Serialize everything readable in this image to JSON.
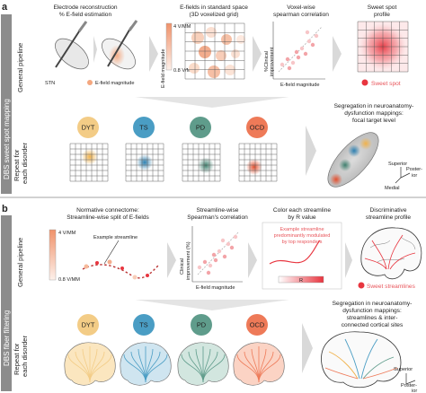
{
  "panel_a": {
    "letter": "a",
    "side_label": "DBS sweet spot mapping",
    "row1_label": "General pipeline",
    "row2_label_line1": "Repeat for",
    "row2_label_line2": "each disorder",
    "step1_title_line1": "Electrode reconstruction",
    "step1_title_line2": "% E-field estimation",
    "step1_stn": "STN",
    "step1_legend": "E-field magnitude",
    "step2_title_line1": "E-fields in standard space",
    "step2_title_line2": "(3D voxelized grid)",
    "step2_scale_top": "4 V/MM",
    "step2_scale_bottom": "0.8 V/MM",
    "step2_axis": "E-field magnitude",
    "step3_title_line1": "Voxel-wise",
    "step3_title_line2": "spearman correlation",
    "step3_yaxis_line1": "%Clinical",
    "step3_yaxis_line2": "improvement",
    "step3_xaxis": "E-field magnitude",
    "step4_title_line1": "Sweet spot",
    "step4_title_line2": "profile",
    "step4_legend": "Sweet spot",
    "disorders": [
      "DYT",
      "TS",
      "PD",
      "OCD"
    ],
    "disorder_colors": [
      "#f3cc86",
      "#4a9dc4",
      "#5f9c8b",
      "#ee7a58"
    ],
    "summary_line1": "Segregation in neuroanatomy-",
    "summary_line2": "dysfunction mappings:",
    "summary_line3": "focal target level",
    "orient_superior": "Superior",
    "orient_posterior_line1": "Poster-",
    "orient_posterior_line2": "ior",
    "orient_medial": "Medial"
  },
  "panel_b": {
    "letter": "b",
    "side_label": "DBS fiber filtering",
    "row1_label": "General pipeline",
    "row2_label_line1": "Repeat for",
    "row2_label_line2": "each disorder",
    "step1_title_line1": "Normative connectome:",
    "step1_title_line2": "Streamline-wise split of E-fields",
    "step1_scale_top": "4 V/MM",
    "step1_scale_bottom": "0.8 V/MM",
    "step1_example": "Example streamline",
    "step2_title_line1": "Streamline-wise",
    "step2_title_line2": "Spearman's correlation",
    "step2_yaxis_line1": "Clinical",
    "step2_yaxis_line2": "improvement (%)",
    "step2_xaxis": "E-field magnitude",
    "step3_title_line1": "Color each streamline",
    "step3_title_line2": "by R value",
    "step3_note_line1": "Example streamline",
    "step3_note_line2": "predominantly modulated",
    "step3_note_line3": "by top responders",
    "step3_r": "R",
    "step4_title_line1": "Discriminative",
    "step4_title_line2": "streamline profile",
    "step4_legend": "Sweet streamlines",
    "disorders": [
      "DYT",
      "TS",
      "PD",
      "OCD"
    ],
    "summary_line1": "Segregation in neuroanatomy-",
    "summary_line2": "dysfunction mappings:",
    "summary_line3": "streamlines & inter-",
    "summary_line4": "connected cortical sites",
    "orient_superior": "Superior",
    "orient_posterior_line1": "Poster-",
    "orient_posterior_line2": "ior"
  }
}
